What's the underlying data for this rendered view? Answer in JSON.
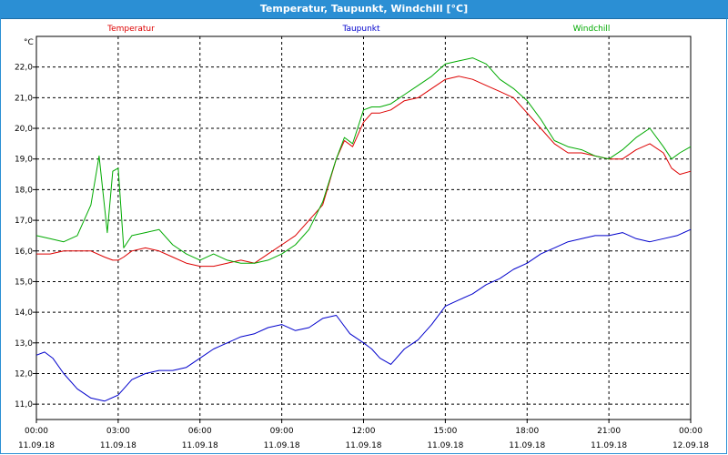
{
  "window": {
    "title": "Temperatur, Taupunkt, Windchill [°C]"
  },
  "chart_data": {
    "type": "line",
    "title": "Temperatur, Taupunkt, Windchill [°C]",
    "ylabel": "°C",
    "xlabel": "",
    "ylim": [
      10.5,
      23.0
    ],
    "xlim": [
      0,
      24
    ],
    "y_ticks": [
      "11,0",
      "12,0",
      "13,0",
      "14,0",
      "15,0",
      "16,0",
      "17,0",
      "18,0",
      "19,0",
      "20,0",
      "21,0",
      "22,0"
    ],
    "x_ticks": [
      {
        "time": "00:00",
        "date": "11.09.18"
      },
      {
        "time": "03:00",
        "date": "11.09.18"
      },
      {
        "time": "06:00",
        "date": "11.09.18"
      },
      {
        "time": "09:00",
        "date": "11.09.18"
      },
      {
        "time": "12:00",
        "date": "11.09.18"
      },
      {
        "time": "15:00",
        "date": "11.09.18"
      },
      {
        "time": "18:00",
        "date": "11.09.18"
      },
      {
        "time": "21:00",
        "date": "11.09.18"
      },
      {
        "time": "00:00",
        "date": "12.09.18"
      }
    ],
    "grid": true,
    "legend_position": "top",
    "series": [
      {
        "name": "Temperatur",
        "color": "#dd0000",
        "x": [
          0,
          0.5,
          1,
          1.5,
          2,
          2.5,
          2.8,
          3,
          3.2,
          3.5,
          4,
          4.5,
          5,
          5.5,
          6,
          6.5,
          7,
          7.5,
          8,
          8.5,
          9,
          9.5,
          10,
          10.5,
          11,
          11.3,
          11.6,
          12,
          12.3,
          12.6,
          13,
          13.5,
          14,
          14.5,
          15,
          15.5,
          16,
          16.5,
          17,
          17.5,
          18,
          18.5,
          19,
          19.5,
          20,
          20.5,
          21,
          21.5,
          22,
          22.5,
          23,
          23.3,
          23.6,
          24
        ],
        "y": [
          15.9,
          15.9,
          16.0,
          16.0,
          16.0,
          15.8,
          15.7,
          15.7,
          15.8,
          16.0,
          16.1,
          16.0,
          15.8,
          15.6,
          15.5,
          15.5,
          15.6,
          15.7,
          15.6,
          15.9,
          16.2,
          16.5,
          17.0,
          17.5,
          19.0,
          19.6,
          19.4,
          20.2,
          20.5,
          20.5,
          20.6,
          20.9,
          21.0,
          21.3,
          21.6,
          21.7,
          21.6,
          21.4,
          21.2,
          21.0,
          20.5,
          20.0,
          19.5,
          19.2,
          19.2,
          19.1,
          19.0,
          19.0,
          19.3,
          19.5,
          19.2,
          18.7,
          18.5,
          18.6
        ]
      },
      {
        "name": "Taupunkt",
        "color": "#0000cc",
        "x": [
          0,
          0.3,
          0.6,
          1,
          1.5,
          2,
          2.5,
          3,
          3.5,
          4,
          4.5,
          5,
          5.5,
          6,
          6.5,
          7,
          7.5,
          8,
          8.5,
          9,
          9.5,
          10,
          10.5,
          11,
          11.5,
          12,
          12.3,
          12.6,
          13,
          13.5,
          14,
          14.5,
          15,
          15.5,
          16,
          16.5,
          17,
          17.5,
          18,
          18.5,
          19,
          19.5,
          20,
          20.5,
          21,
          21.5,
          22,
          22.5,
          23,
          23.5,
          24
        ],
        "y": [
          12.6,
          12.7,
          12.5,
          12.0,
          11.5,
          11.2,
          11.1,
          11.3,
          11.8,
          12.0,
          12.1,
          12.1,
          12.2,
          12.5,
          12.8,
          13.0,
          13.2,
          13.3,
          13.5,
          13.6,
          13.4,
          13.5,
          13.8,
          13.9,
          13.3,
          13.0,
          12.8,
          12.5,
          12.3,
          12.8,
          13.1,
          13.6,
          14.2,
          14.4,
          14.6,
          14.9,
          15.1,
          15.4,
          15.6,
          15.9,
          16.1,
          16.3,
          16.4,
          16.5,
          16.5,
          16.6,
          16.4,
          16.3,
          16.4,
          16.5,
          16.7
        ]
      },
      {
        "name": "Windchill",
        "color": "#00aa00",
        "x": [
          0,
          0.5,
          1,
          1.5,
          2,
          2.3,
          2.6,
          2.8,
          3.0,
          3.2,
          3.5,
          4,
          4.5,
          5,
          5.5,
          6,
          6.5,
          7,
          7.5,
          8,
          8.5,
          9,
          9.5,
          10,
          10.5,
          11,
          11.3,
          11.6,
          12,
          12.3,
          12.6,
          13,
          13.5,
          14,
          14.5,
          15,
          15.5,
          16,
          16.5,
          17,
          17.5,
          18,
          18.5,
          19,
          19.5,
          20,
          20.5,
          21,
          21.5,
          22,
          22.5,
          23,
          23.3,
          23.6,
          24
        ],
        "y": [
          16.5,
          16.4,
          16.3,
          16.5,
          17.5,
          19.1,
          16.6,
          18.6,
          18.7,
          16.1,
          16.5,
          16.6,
          16.7,
          16.2,
          15.9,
          15.7,
          15.9,
          15.7,
          15.6,
          15.6,
          15.7,
          15.9,
          16.2,
          16.7,
          17.6,
          19.0,
          19.7,
          19.5,
          20.6,
          20.7,
          20.7,
          20.8,
          21.1,
          21.4,
          21.7,
          22.1,
          22.2,
          22.3,
          22.1,
          21.6,
          21.3,
          20.9,
          20.3,
          19.6,
          19.4,
          19.3,
          19.1,
          19.0,
          19.3,
          19.7,
          20.0,
          19.4,
          19.0,
          19.2,
          19.4
        ]
      }
    ]
  }
}
